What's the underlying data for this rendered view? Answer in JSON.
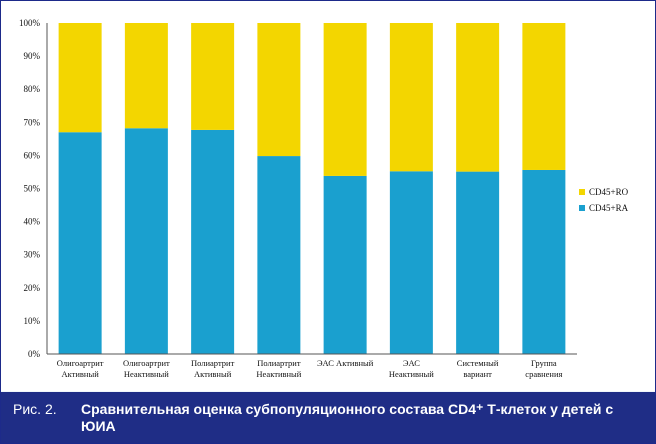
{
  "chart_data": {
    "type": "bar",
    "stacked": true,
    "categories": [
      [
        "Олигоартрит",
        "Активный"
      ],
      [
        "Олигоартрит",
        "Неактивный"
      ],
      [
        "Полиартрит",
        "Активный"
      ],
      [
        "Полиартрит",
        "Неактивный"
      ],
      [
        "ЭАС Активный"
      ],
      [
        "ЭАС",
        "Неактивный"
      ],
      [
        "Системный",
        "вариант"
      ],
      [
        "Группа",
        "сравнения"
      ]
    ],
    "series": [
      {
        "name": "CD45+RA",
        "color": "#1aa0cf",
        "values": [
          67,
          68.2,
          67.7,
          59.8,
          53.8,
          55.2,
          55.1,
          55.6
        ]
      },
      {
        "name": "CD45+RO",
        "color": "#f3d600",
        "values": [
          33,
          31.8,
          32.3,
          40.2,
          46.2,
          44.8,
          44.9,
          44.4
        ]
      }
    ],
    "yticks": [
      "0%",
      "10%",
      "20%",
      "30%",
      "40%",
      "50%",
      "60%",
      "70%",
      "80%",
      "90%",
      "100%"
    ],
    "ylim": [
      0,
      100
    ],
    "legend_position": "right",
    "grid": false
  },
  "legend": [
    {
      "label": "CD45+RO",
      "color": "#f3d600"
    },
    {
      "label": "CD45+RA",
      "color": "#1aa0cf"
    }
  ],
  "caption": {
    "prefix": "Рис. 2.",
    "text": "Сравнительная оценка субпопуляционного состава CD4⁺ Т-клеток у детей с ЮИА"
  }
}
